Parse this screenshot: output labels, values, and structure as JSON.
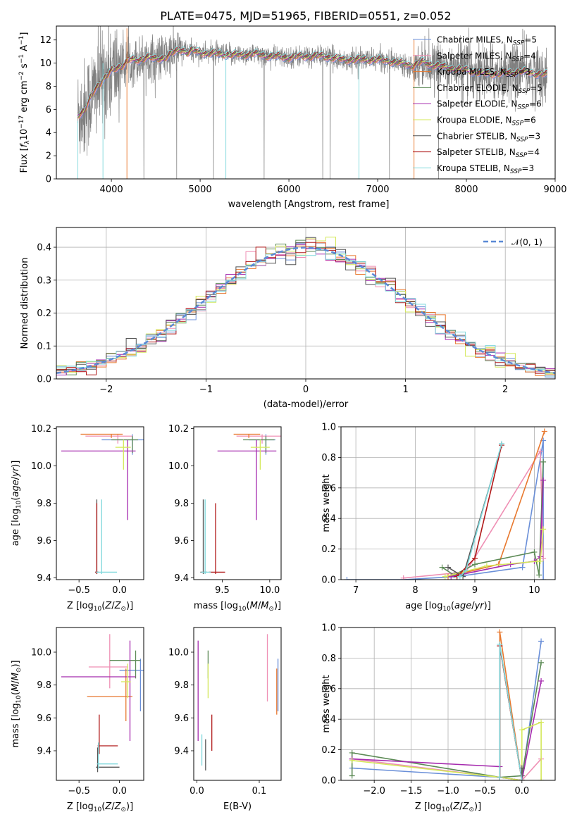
{
  "figure_title": "PLATE=0475, MJD=51965, FIBERID=0551, z=0.052",
  "models": [
    {
      "name": "Chabrier MILES, N$_{SSP}$=5",
      "label": "Chabrier MILES, N",
      "sub": "SSP",
      "n": "=5",
      "color": "#6a8fd8"
    },
    {
      "name": "Salpeter MILES, N$_{SSP}$=4",
      "label": "Salpeter MILES, N",
      "sub": "SSP",
      "n": "=4",
      "color": "#ef8fb4"
    },
    {
      "name": "Kroupa MILES, N$_{SSP}$=3",
      "label": "Kroupa MILES, N",
      "sub": "SSP",
      "n": "=3",
      "color": "#e8782e"
    },
    {
      "name": "Chabrier ELODIE, N$_{SSP}$=5",
      "label": "Chabrier ELODIE, N",
      "sub": "SSP",
      "n": "=5",
      "color": "#5c8a55"
    },
    {
      "name": "Salpeter ELODIE, N$_{SSP}$=6",
      "label": "Salpeter ELODIE, N",
      "sub": "SSP",
      "n": "=6",
      "color": "#a52aae"
    },
    {
      "name": "Kroupa ELODIE, N$_{SSP}$=6",
      "label": "Kroupa ELODIE, N",
      "sub": "SSP",
      "n": "=6",
      "color": "#d4e85a"
    },
    {
      "name": "Chabrier STELIB, N$_{SSP}$=3",
      "label": "Chabrier STELIB, N",
      "sub": "SSP",
      "n": "=3",
      "color": "#555555"
    },
    {
      "name": "Salpeter STELIB, N$_{SSP}$=4",
      "label": "Salpeter STELIB, N",
      "sub": "SSP",
      "n": "=4",
      "color": "#b01818"
    },
    {
      "name": "Kroupa STELIB, N$_{SSP}$=3",
      "label": "Kroupa STELIB, N",
      "sub": "SSP",
      "n": "=3",
      "color": "#7fd8dc"
    }
  ],
  "data_color": "#808080",
  "chart_data": [
    {
      "id": "spectrum",
      "type": "line",
      "xlabel": "wavelength [Angstrom, rest frame]",
      "ylabel": "Flux [f$_\\lambda$ 10$^{-17}$ erg cm$^{-2}$ s$^{-1}$ A$^{-1}$]",
      "ylabel_parts": {
        "a": "Flux [",
        "f": "f",
        "lam": "λ",
        "mid": "10",
        "e1": "−17",
        "b": " erg cm",
        "e2": "−2",
        "c": " s",
        "e3": "−1",
        "d": " A",
        "e4": "−1",
        "end": "]"
      },
      "xlim": [
        3380,
        9000
      ],
      "ylim": [
        0,
        13.2
      ],
      "xticks": [
        4000,
        5000,
        6000,
        7000,
        8000,
        9000
      ],
      "yticks": [
        0,
        2,
        4,
        6,
        8,
        10,
        12
      ],
      "spectrum_envelope": {
        "wavelength": [
          3620,
          3700,
          3800,
          3900,
          4000,
          4100,
          4200,
          4300,
          4400,
          4500,
          4600,
          4700,
          4800,
          4860,
          4900,
          5000,
          5200,
          5400,
          5600,
          5800,
          6000,
          6200,
          6400,
          6600,
          6800,
          7000,
          7200,
          7400,
          7500,
          7600,
          7800,
          8000,
          8200,
          8400,
          8600,
          8800,
          8910
        ],
        "model_flux": [
          5.5,
          6.0,
          7.5,
          8.6,
          9.3,
          9.7,
          10.3,
          10.2,
          10.6,
          10.3,
          10.5,
          10.9,
          11.2,
          10.9,
          11.1,
          10.9,
          10.8,
          10.7,
          10.8,
          10.6,
          10.5,
          10.6,
          10.6,
          10.3,
          10.3,
          10.3,
          10.1,
          9.8,
          10.1,
          9.9,
          9.6,
          9.4,
          9.1,
          9.1,
          9.3,
          9.1,
          9.0
        ]
      }
    },
    {
      "id": "residuals",
      "type": "line",
      "xlabel": "(data-model)/error",
      "ylabel": "Normed distribution",
      "legend": "𝒩(0, 1)",
      "xlim": [
        -2.5,
        2.5
      ],
      "ylim": [
        0,
        0.46
      ],
      "xticks": [
        -2,
        -1,
        0,
        1,
        2
      ],
      "yticks": [
        0.0,
        0.1,
        0.2,
        0.3,
        0.4
      ],
      "bin_width": 0.1
    },
    {
      "id": "age-Z",
      "type": "scatter",
      "xlabel": "Z [log$_{10}$(Z/Z$_\\odot$)]",
      "ylabel": "age [log$_{10}$(age/yr)]",
      "xlim": [
        -0.78,
        0.3
      ],
      "ylim": [
        9.39,
        10.21
      ],
      "xticks": [
        -0.5,
        0.0
      ],
      "yticks": [
        9.4,
        9.6,
        9.8,
        10.0,
        10.2
      ],
      "points": [
        {
          "m": 0,
          "x": 0.16,
          "y": 10.14,
          "xl": -0.22,
          "xh": 0.3,
          "yl": 10.06,
          "yh": 10.17
        },
        {
          "m": 1,
          "x": -0.02,
          "y": 10.16,
          "xl": -0.42,
          "xh": 0.16,
          "yl": 10.12,
          "yh": 10.17
        },
        {
          "m": 2,
          "x": -0.1,
          "y": 10.17,
          "xl": -0.48,
          "xh": 0.04,
          "yl": 10.15,
          "yh": 10.17
        },
        {
          "m": 3,
          "x": 0.16,
          "y": 10.14,
          "xl": -0.1,
          "xh": 0.23,
          "yl": 10.07,
          "yh": 10.16
        },
        {
          "m": 4,
          "x": 0.1,
          "y": 10.08,
          "xl": -0.72,
          "xh": 0.2,
          "yl": 9.71,
          "yh": 10.14
        },
        {
          "m": 5,
          "x": 0.05,
          "y": 10.1,
          "xl": -0.05,
          "xh": 0.14,
          "yl": 9.98,
          "yh": 10.14
        },
        {
          "m": 6,
          "x": -0.28,
          "y": 9.43,
          "xl": -0.3,
          "xh": -0.26,
          "yl": 9.42,
          "yh": 9.82
        },
        {
          "m": 7,
          "x": -0.28,
          "y": 9.43,
          "xl": -0.3,
          "xh": -0.26,
          "yl": 9.42,
          "yh": 9.8
        },
        {
          "m": 8,
          "x": -0.22,
          "y": 9.43,
          "xl": -0.29,
          "xh": -0.03,
          "yl": 9.42,
          "yh": 9.82
        }
      ]
    },
    {
      "id": "age-mass",
      "type": "scatter",
      "xlabel": "mass [log$_{10}$(M/M$_\\odot$)]",
      "ylabel": "",
      "xlim": [
        9.2,
        10.12
      ],
      "ylim": [
        9.39,
        10.21
      ],
      "xticks": [
        9.5,
        10.0
      ],
      "yticks": [
        9.4,
        9.6,
        9.8,
        10.0,
        10.2
      ],
      "points": [
        {
          "m": 0,
          "x": 9.96,
          "y": 10.14,
          "xl": 9.78,
          "xh": 10.06,
          "yl": 10.06,
          "yh": 10.17
        },
        {
          "m": 1,
          "x": 9.92,
          "y": 10.16,
          "xl": 9.65,
          "xh": 10.12,
          "yl": 10.12,
          "yh": 10.17
        },
        {
          "m": 2,
          "x": 9.78,
          "y": 10.17,
          "xl": 9.62,
          "xh": 9.9,
          "yl": 10.15,
          "yh": 10.17
        },
        {
          "m": 3,
          "x": 9.96,
          "y": 10.14,
          "xl": 9.72,
          "xh": 10.05,
          "yl": 10.07,
          "yh": 10.16
        },
        {
          "m": 4,
          "x": 9.86,
          "y": 10.08,
          "xl": 9.45,
          "xh": 10.07,
          "yl": 9.71,
          "yh": 10.14
        },
        {
          "m": 5,
          "x": 9.9,
          "y": 10.1,
          "xl": 9.8,
          "xh": 10.0,
          "yl": 9.98,
          "yh": 10.14
        },
        {
          "m": 6,
          "x": 9.3,
          "y": 9.43,
          "xl": 9.27,
          "xh": 9.34,
          "yl": 9.42,
          "yh": 9.82
        },
        {
          "m": 7,
          "x": 9.43,
          "y": 9.43,
          "xl": 9.36,
          "xh": 9.53,
          "yl": 9.42,
          "yh": 9.8
        },
        {
          "m": 8,
          "x": 9.32,
          "y": 9.43,
          "xl": 9.28,
          "xh": 9.38,
          "yl": 9.42,
          "yh": 9.82
        }
      ]
    },
    {
      "id": "weight-age",
      "type": "line",
      "xlabel": "age [log$_{10}$(age/yr)]",
      "ylabel": "mass weight",
      "xlim": [
        6.75,
        10.35
      ],
      "ylim": [
        0,
        1.0
      ],
      "xticks": [
        7,
        8,
        9,
        10
      ],
      "yticks": [
        0.0,
        0.2,
        0.4,
        0.6,
        0.8,
        1.0
      ],
      "series": [
        {
          "m": 0,
          "x": [
            6.85,
            7.8,
            8.7,
            9.8,
            10.15,
            10.15
          ],
          "y": [
            0.0,
            0.0,
            0.02,
            0.08,
            0.91,
            0.0
          ]
        },
        {
          "m": 1,
          "x": [
            7.8,
            8.85,
            10.1,
            10.15
          ],
          "y": [
            0.01,
            0.05,
            0.84,
            0.14
          ]
        },
        {
          "m": 2,
          "x": [
            8.55,
            9.4,
            10.17
          ],
          "y": [
            0.02,
            0.1,
            0.97
          ]
        },
        {
          "m": 3,
          "x": [
            8.45,
            8.65,
            9.0,
            10.0,
            10.08,
            10.15
          ],
          "y": [
            0.08,
            0.03,
            0.1,
            0.18,
            0.03,
            0.77
          ]
        },
        {
          "m": 4,
          "x": [
            8.6,
            9.6,
            10.0,
            10.1,
            10.15
          ],
          "y": [
            0.02,
            0.1,
            0.12,
            0.15,
            0.65
          ]
        },
        {
          "m": 5,
          "x": [
            8.5,
            9.2,
            10.05,
            10.1,
            10.15
          ],
          "y": [
            0.02,
            0.09,
            0.12,
            0.12,
            0.33
          ]
        },
        {
          "m": 6,
          "x": [
            8.55,
            8.8,
            9.45
          ],
          "y": [
            0.08,
            0.02,
            0.88
          ]
        },
        {
          "m": 7,
          "x": [
            8.7,
            9.0,
            9.45
          ],
          "y": [
            0.02,
            0.14,
            0.88
          ]
        },
        {
          "m": 8,
          "x": [
            8.75,
            8.85,
            9.45
          ],
          "y": [
            0.02,
            0.06,
            0.89
          ]
        }
      ]
    },
    {
      "id": "mass-Z",
      "type": "scatter",
      "xlabel": "Z [log$_{10}$(Z/Z$_\\odot$)]",
      "ylabel": "mass [log$_{10}$(M/M$_\\odot$)]",
      "xlim": [
        -0.78,
        0.3
      ],
      "ylim": [
        9.22,
        10.15
      ],
      "xticks": [
        -0.5,
        0.0
      ],
      "yticks": [
        9.4,
        9.6,
        9.8,
        10.0
      ],
      "points": [
        {
          "m": 0,
          "x": 0.26,
          "y": 9.89,
          "xl": 0.0,
          "xh": 0.3,
          "yl": 9.64,
          "yh": 9.96
        },
        {
          "m": 1,
          "x": -0.12,
          "y": 9.91,
          "xl": -0.38,
          "xh": 0.1,
          "yl": 9.78,
          "yh": 10.11
        },
        {
          "m": 2,
          "x": 0.08,
          "y": 9.73,
          "xl": -0.4,
          "xh": 0.16,
          "yl": 9.58,
          "yh": 9.9
        },
        {
          "m": 3,
          "x": 0.2,
          "y": 9.95,
          "xl": -0.12,
          "xh": 0.26,
          "yl": 9.84,
          "yh": 10.01
        },
        {
          "m": 4,
          "x": 0.13,
          "y": 9.85,
          "xl": -0.72,
          "xh": 0.2,
          "yl": 9.46,
          "yh": 10.07
        },
        {
          "m": 5,
          "x": 0.1,
          "y": 9.82,
          "xl": 0.02,
          "xh": 0.14,
          "yl": 9.72,
          "yh": 9.93
        },
        {
          "m": 6,
          "x": -0.27,
          "y": 9.3,
          "xl": -0.29,
          "xh": -0.0,
          "yl": 9.27,
          "yh": 9.42
        },
        {
          "m": 7,
          "x": -0.25,
          "y": 9.43,
          "xl": -0.27,
          "xh": -0.02,
          "yl": 9.38,
          "yh": 9.62
        },
        {
          "m": 8,
          "x": -0.26,
          "y": 9.32,
          "xl": -0.28,
          "xh": -0.02,
          "yl": 9.29,
          "yh": 9.45
        }
      ]
    },
    {
      "id": "mass-EBV",
      "type": "scatter",
      "xlabel": "E(B-V)",
      "ylabel": "",
      "xlim": [
        -0.005,
        0.135
      ],
      "ylim": [
        9.22,
        10.15
      ],
      "xticks": [
        0.0,
        0.1
      ],
      "yticks": [
        9.4,
        9.6,
        9.8,
        10.0
      ],
      "points": [
        {
          "m": 0,
          "x": 0.13,
          "y": 9.89,
          "yl": 9.64,
          "yh": 9.96
        },
        {
          "m": 1,
          "x": 0.113,
          "y": 9.91,
          "yl": 9.7,
          "yh": 10.11
        },
        {
          "m": 2,
          "x": 0.128,
          "y": 9.77,
          "yl": 9.62,
          "yh": 9.9
        },
        {
          "m": 3,
          "x": 0.018,
          "y": 9.95,
          "yl": 9.84,
          "yh": 10.01
        },
        {
          "m": 4,
          "x": 0.002,
          "y": 9.8,
          "yl": 9.46,
          "yh": 10.07
        },
        {
          "m": 5,
          "x": 0.018,
          "y": 9.82,
          "yl": 9.72,
          "yh": 9.93
        },
        {
          "m": 6,
          "x": 0.014,
          "y": 9.35,
          "yl": 9.28,
          "yh": 9.47
        },
        {
          "m": 7,
          "x": 0.024,
          "y": 9.5,
          "yl": 9.4,
          "yh": 9.62
        },
        {
          "m": 8,
          "x": 0.008,
          "y": 9.4,
          "yl": 9.31,
          "yh": 9.5
        }
      ]
    },
    {
      "id": "weight-Z",
      "type": "line",
      "xlabel": "Z [log$_{10}$(Z/Z$_\\odot$)]",
      "ylabel": "mass weight",
      "xlim": [
        -2.45,
        0.45
      ],
      "ylim": [
        0,
        1.0
      ],
      "xticks": [
        -2.0,
        -1.5,
        -1.0,
        -0.5,
        0.0
      ],
      "yticks": [
        0.0,
        0.2,
        0.4,
        0.6,
        0.8,
        1.0
      ],
      "series": [
        {
          "m": 0,
          "x": [
            -2.3,
            -0.3,
            0.0,
            0.26
          ],
          "y": [
            0.08,
            0.02,
            0.0,
            0.91
          ]
        },
        {
          "m": 1,
          "x": [
            -2.3,
            -0.3,
            0.0,
            0.26
          ],
          "y": [
            0.14,
            0.02,
            0.0,
            0.14
          ]
        },
        {
          "m": 2,
          "x": [
            -0.3,
            -0.3,
            0.0
          ],
          "y": [
            0.02,
            0.97,
            0.0
          ]
        },
        {
          "m": 3,
          "x": [
            -2.3,
            -2.3,
            -0.3,
            0.0,
            0.26
          ],
          "y": [
            0.03,
            0.18,
            0.02,
            0.03,
            0.77
          ]
        },
        {
          "m": 4,
          "x": [
            -2.3,
            -0.3,
            -0.3,
            0.0,
            0.26
          ],
          "y": [
            0.14,
            0.09,
            0.02,
            0.0,
            0.65
          ]
        },
        {
          "m": 5,
          "x": [
            -2.3,
            -0.3,
            0.0,
            0.0,
            0.26,
            0.26
          ],
          "y": [
            0.13,
            0.02,
            0.0,
            0.33,
            0.38,
            0.0
          ]
        },
        {
          "m": 6,
          "x": [
            -0.3,
            -0.3,
            0.0,
            0.0
          ],
          "y": [
            0.02,
            0.88,
            0.0,
            0.08
          ]
        },
        {
          "m": 7,
          "x": [
            -0.3,
            -0.3,
            0.0
          ],
          "y": [
            0.02,
            0.88,
            0.0
          ]
        },
        {
          "m": 8,
          "x": [
            -0.3,
            -0.3,
            0.0
          ],
          "y": [
            0.02,
            0.89,
            0.0
          ]
        }
      ]
    }
  ]
}
